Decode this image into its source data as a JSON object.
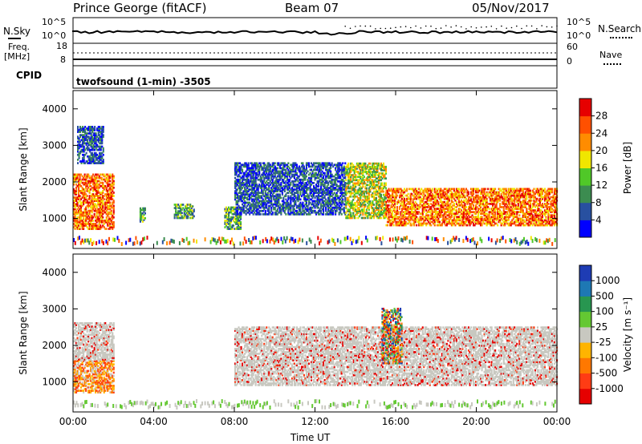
{
  "header": {
    "station": "Prince George (fitACF)",
    "beam": "Beam 07",
    "date": "05/Nov/2017"
  },
  "noise_panel": {
    "left_label": "N.Sky",
    "right_label": "N.Search",
    "left_ticks": [
      "10^5",
      "10^0"
    ],
    "right_ticks": [
      "10^5",
      "10^0"
    ]
  },
  "freq_panel": {
    "left_label_1": "Freq.",
    "left_label_2": "[MHz]",
    "left_ticks": [
      "18",
      "8"
    ],
    "right_label": "Nave",
    "right_ticks": [
      "60",
      "0"
    ]
  },
  "cpid": {
    "label": "CPID",
    "value": "twofsound (1-min) -3505"
  },
  "chart_data": [
    {
      "type": "heatmap",
      "parameter": "Power",
      "ylabel": "Slant Range [km]",
      "ylim": [
        180,
        4500
      ],
      "yticks": [
        "1000",
        "2000",
        "3000",
        "4000"
      ],
      "colorbar_label": "Power [dB]",
      "colorbar_ticks": [
        "4",
        "8",
        "12",
        "16",
        "20",
        "24",
        "28"
      ],
      "colors": [
        "#0000ff",
        "#2850a0",
        "#3c8c50",
        "#50c828",
        "#f0e600",
        "#ff8c00",
        "#ff5000",
        "#e60000"
      ],
      "features": [
        {
          "t": [
            0.0,
            2.0
          ],
          "range": [
            700,
            2200
          ],
          "level": "high"
        },
        {
          "t": [
            0.2,
            1.5
          ],
          "range": [
            2500,
            3500
          ],
          "level": "low"
        },
        {
          "t": [
            3.3,
            3.6
          ],
          "range": [
            900,
            1300
          ],
          "level": "mid"
        },
        {
          "t": [
            5.0,
            6.0
          ],
          "range": [
            1000,
            1400
          ],
          "level": "mid"
        },
        {
          "t": [
            7.5,
            8.3
          ],
          "range": [
            700,
            1300
          ],
          "level": "mid"
        },
        {
          "t": [
            8.0,
            13.5
          ],
          "range": [
            1100,
            2500
          ],
          "level": "low"
        },
        {
          "t": [
            13.5,
            15.5
          ],
          "range": [
            1000,
            2500
          ],
          "level": "mid-high"
        },
        {
          "t": [
            15.5,
            24.0
          ],
          "range": [
            800,
            1800
          ],
          "level": "high"
        }
      ]
    },
    {
      "type": "heatmap",
      "parameter": "Velocity",
      "ylabel": "Slant Range [km]",
      "ylim": [
        180,
        4500
      ],
      "yticks": [
        "1000",
        "2000",
        "3000",
        "4000"
      ],
      "colorbar_label": "Velocity [m s⁻¹]",
      "colorbar_ticks": [
        "1000",
        "500",
        "100",
        "25",
        "-25",
        "-100",
        "-500",
        "-1000"
      ],
      "colors": [
        "#1e3cb4",
        "#1e78b4",
        "#289650",
        "#64c832",
        "#c8c8c0",
        "#ffb400",
        "#ff7800",
        "#ff3c14",
        "#e60000"
      ],
      "features": [
        {
          "t": [
            0.0,
            2.0
          ],
          "range": [
            700,
            1600
          ],
          "level": "negative"
        },
        {
          "t": [
            0.0,
            2.0
          ],
          "range": [
            1600,
            2600
          ],
          "level": "near-zero"
        },
        {
          "t": [
            8.0,
            24.0
          ],
          "range": [
            900,
            2500
          ],
          "level": "near-zero"
        },
        {
          "t": [
            15.3,
            16.3
          ],
          "range": [
            1500,
            3000
          ],
          "level": "mixed"
        }
      ]
    }
  ],
  "time_axis": {
    "ticks": [
      "00:00",
      "04:00",
      "08:00",
      "12:00",
      "16:00",
      "20:00",
      "00:00"
    ],
    "label": "Time UT"
  }
}
